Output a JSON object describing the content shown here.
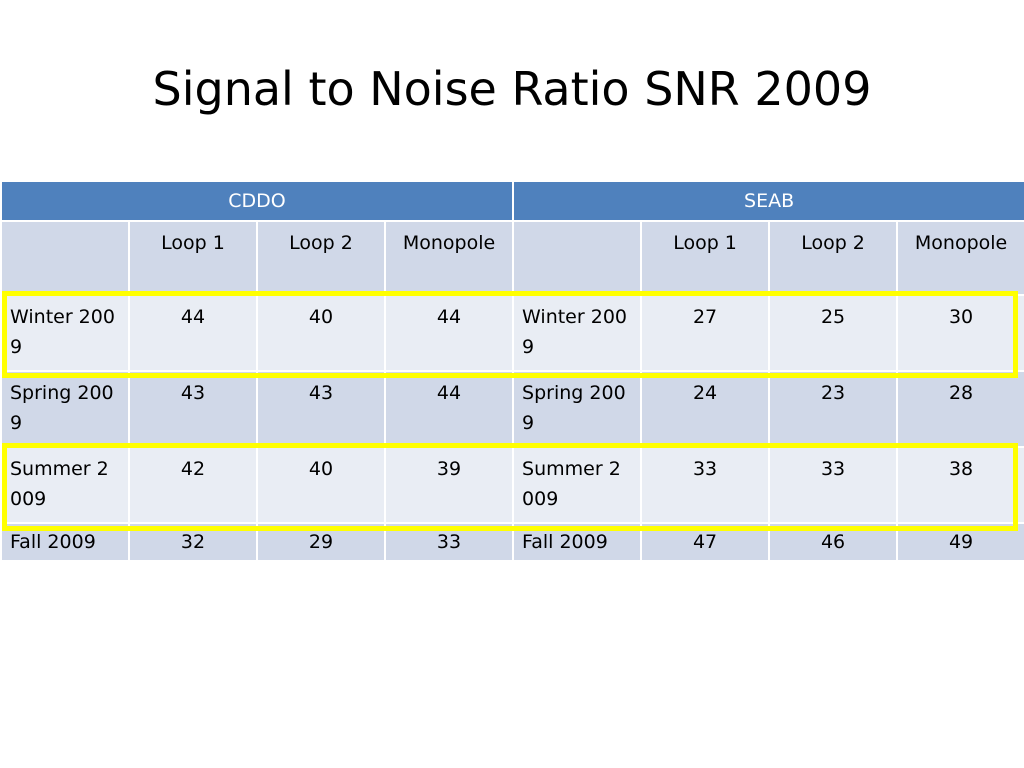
{
  "title": "Signal to Noise Ratio SNR 2009",
  "table": {
    "groups": [
      "CDDO",
      "SEAB"
    ],
    "columns": [
      "",
      "Loop 1",
      "Loop 2",
      "Monopole"
    ],
    "rows": [
      {
        "label": "Winter 2009",
        "cddo": [
          "44",
          "40",
          "44"
        ],
        "seab": [
          "27",
          "25",
          "30"
        ],
        "highlighted": true
      },
      {
        "label": "Spring 2009",
        "cddo": [
          "43",
          "43",
          "44"
        ],
        "seab": [
          "24",
          "23",
          "28"
        ],
        "highlighted": false
      },
      {
        "label": "Summer 2009",
        "cddo": [
          "42",
          "40",
          "39"
        ],
        "seab": [
          "33",
          "33",
          "38"
        ],
        "highlighted": true
      },
      {
        "label": "Fall 2009",
        "cddo": [
          "32",
          "29",
          "33"
        ],
        "seab": [
          "47",
          "46",
          "49"
        ],
        "highlighted": false
      }
    ]
  },
  "colors": {
    "header_blue": "#4f81bd",
    "row_dark": "#d0d8e8",
    "row_light": "#e9edf4",
    "highlight": "#ffff00"
  }
}
